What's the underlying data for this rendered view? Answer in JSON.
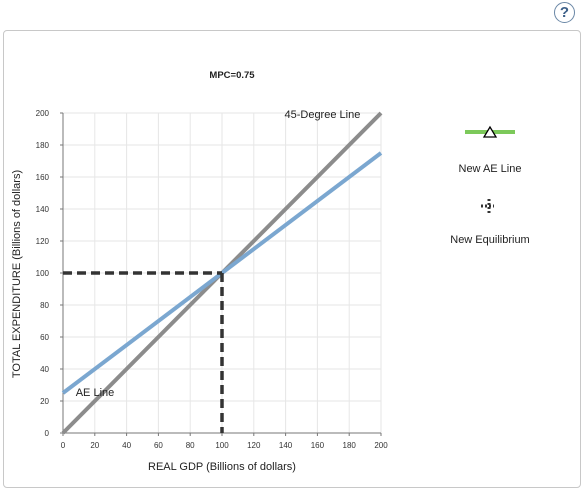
{
  "help_label": "?",
  "chart_data": {
    "type": "line",
    "title": "MPC=0.75",
    "xlabel": "REAL GDP (Billions of dollars)",
    "ylabel": "TOTAL EXPENDITURE (Billions of dollars)",
    "xlim": [
      0,
      200
    ],
    "ylim": [
      0,
      200
    ],
    "xticks": [
      0,
      20,
      40,
      60,
      80,
      100,
      120,
      140,
      160,
      180,
      200
    ],
    "yticks": [
      0,
      20,
      40,
      60,
      80,
      100,
      120,
      140,
      160,
      180,
      200
    ],
    "grid": true,
    "series": [
      {
        "name": "45-Degree Line",
        "x": [
          0,
          200
        ],
        "y": [
          0,
          200
        ],
        "color": "#8c8c8c"
      },
      {
        "name": "AE Line",
        "x": [
          0,
          200
        ],
        "y": [
          25,
          175
        ],
        "color": "#7ba7d0"
      }
    ],
    "equilibrium": {
      "x": 100,
      "y": 100,
      "color": "#333333"
    },
    "annotations": [
      {
        "text": "45-Degree Line",
        "x": 187,
        "y": 197
      },
      {
        "text": "AE Line",
        "x": 8,
        "y": 23
      }
    ]
  },
  "palette": {
    "items": [
      {
        "label": "New AE Line",
        "color": "#7cc95a"
      },
      {
        "label": "New Equilibrium",
        "color": "#333333"
      }
    ]
  }
}
